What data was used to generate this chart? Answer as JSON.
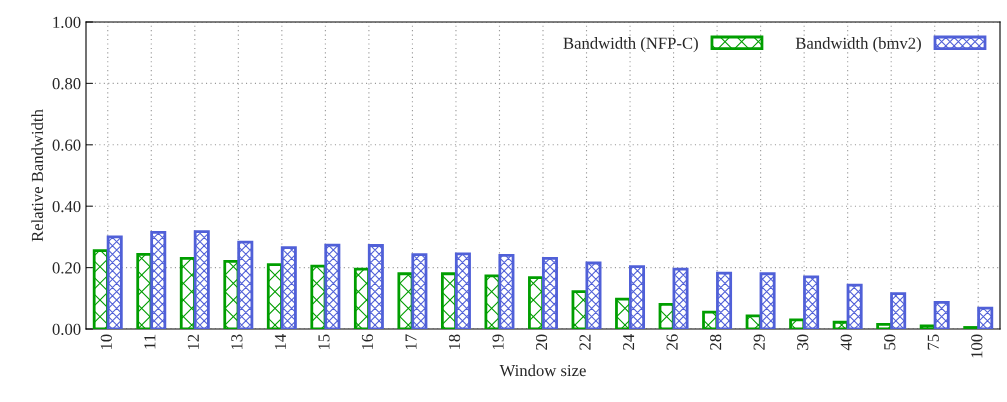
{
  "chart_data": {
    "type": "bar",
    "xlabel": "Window size",
    "ylabel": "Relative Bandwidth",
    "categories": [
      "10",
      "11",
      "12",
      "13",
      "14",
      "15",
      "16",
      "17",
      "18",
      "19",
      "20",
      "22",
      "24",
      "26",
      "28",
      "29",
      "30",
      "40",
      "50",
      "75",
      "100"
    ],
    "series": [
      {
        "name": "Bandwidth (NFP-C)",
        "color": "#009e00",
        "values": [
          0.255,
          0.243,
          0.23,
          0.22,
          0.21,
          0.205,
          0.195,
          0.18,
          0.18,
          0.173,
          0.167,
          0.122,
          0.097,
          0.08,
          0.055,
          0.043,
          0.03,
          0.022,
          0.015,
          0.01,
          0.005
        ]
      },
      {
        "name": "Bandwidth (bmv2)",
        "color": "#5060d8",
        "values": [
          0.3,
          0.315,
          0.317,
          0.283,
          0.265,
          0.273,
          0.272,
          0.242,
          0.245,
          0.24,
          0.23,
          0.215,
          0.203,
          0.195,
          0.182,
          0.18,
          0.17,
          0.143,
          0.115,
          0.087,
          0.068
        ]
      }
    ],
    "ylim": [
      0,
      1
    ],
    "yticks": [
      {
        "value": 0,
        "label": "0.00"
      },
      {
        "value": 0.2,
        "label": "0.20"
      },
      {
        "value": 0.4,
        "label": "0.40"
      },
      {
        "value": 0.6,
        "label": "0.60"
      },
      {
        "value": 0.8,
        "label": "0.80"
      },
      {
        "value": 1,
        "label": "1.00"
      }
    ],
    "grid": true,
    "legend": "top right"
  }
}
